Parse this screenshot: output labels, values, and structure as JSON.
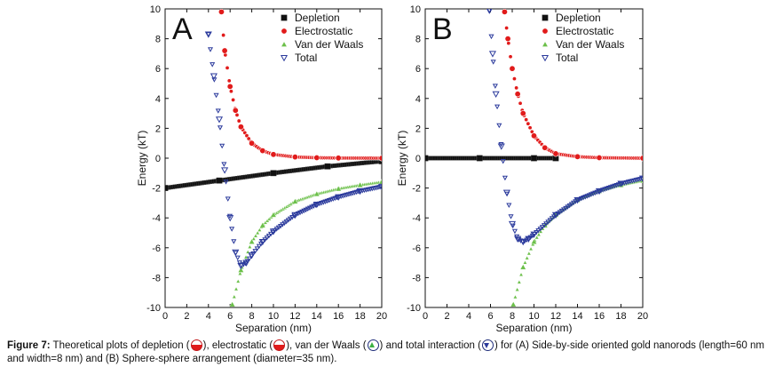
{
  "chart_data": [
    {
      "type": "scatter",
      "panel_label": "A",
      "xlabel": "Separation (nm)",
      "ylabel": "Energy (kT)",
      "xlim": [
        0,
        20
      ],
      "ylim": [
        -10,
        10
      ],
      "xticks": [
        "0",
        "2",
        "4",
        "6",
        "8",
        "10",
        "12",
        "14",
        "16",
        "18",
        "20"
      ],
      "yticks": [
        "-10",
        "-8",
        "-6",
        "-4",
        "-2",
        "0",
        "2",
        "4",
        "6",
        "8",
        "10"
      ],
      "legend": [
        "Depletion",
        "Electrostatic",
        "Van der Waals",
        "Total"
      ],
      "series": [
        {
          "name": "Depletion",
          "x": [
            0,
            5,
            10,
            15,
            20
          ],
          "y": [
            -2.0,
            -1.5,
            -1.0,
            -0.55,
            -0.2
          ]
        },
        {
          "name": "Electrostatic",
          "x": [
            5.2,
            5.5,
            6,
            6.5,
            7,
            8,
            9,
            10,
            12,
            14,
            16,
            20
          ],
          "y": [
            9.8,
            7.2,
            4.8,
            3.2,
            2.1,
            1.0,
            0.5,
            0.25,
            0.08,
            0.03,
            0.01,
            0.0
          ]
        },
        {
          "name": "Van der Waals",
          "x": [
            6.2,
            7,
            8,
            9,
            10,
            12,
            14,
            16,
            18,
            20
          ],
          "y": [
            -9.8,
            -7.5,
            -5.6,
            -4.5,
            -3.8,
            -2.9,
            -2.4,
            -2.05,
            -1.8,
            -1.6
          ]
        },
        {
          "name": "Total",
          "x": [
            4,
            4.5,
            5,
            5.5,
            6,
            6.5,
            7,
            7.5,
            8,
            9,
            10,
            12,
            14,
            16,
            18,
            20
          ],
          "y": [
            8.3,
            5.5,
            2.6,
            -0.8,
            -4.0,
            -6.3,
            -7.2,
            -7.0,
            -6.5,
            -5.6,
            -4.9,
            -3.8,
            -3.1,
            -2.6,
            -2.2,
            -1.9
          ]
        }
      ]
    },
    {
      "type": "scatter",
      "panel_label": "B",
      "xlabel": "Separation (nm)",
      "ylabel": "Energy (kT)",
      "xlim": [
        0,
        20
      ],
      "ylim": [
        -10,
        10
      ],
      "xticks": [
        "0",
        "2",
        "4",
        "6",
        "8",
        "10",
        "12",
        "14",
        "16",
        "18",
        "20"
      ],
      "yticks": [
        "-10",
        "-8",
        "-6",
        "-4",
        "-2",
        "0",
        "2",
        "4",
        "6",
        "8",
        "10"
      ],
      "legend": [
        "Depletion",
        "Electrostatic",
        "Van der Waals",
        "Total"
      ],
      "series": [
        {
          "name": "Depletion",
          "x": [
            0,
            5,
            10,
            12
          ],
          "y": [
            0,
            0,
            0,
            0
          ]
        },
        {
          "name": "Electrostatic",
          "x": [
            7.3,
            7.6,
            8,
            8.5,
            9,
            10,
            11,
            12,
            14,
            16,
            20
          ],
          "y": [
            9.8,
            8.0,
            6.0,
            4.3,
            3.0,
            1.5,
            0.7,
            0.3,
            0.1,
            0.03,
            0.0
          ]
        },
        {
          "name": "Van der Waals",
          "x": [
            8.1,
            9,
            10,
            11,
            12,
            14,
            16,
            18,
            20
          ],
          "y": [
            -9.8,
            -7.3,
            -5.6,
            -4.5,
            -3.8,
            -2.8,
            -2.2,
            -1.8,
            -1.5
          ]
        },
        {
          "name": "Total",
          "x": [
            5.9,
            6.2,
            6.5,
            7,
            7.5,
            8,
            8.5,
            9,
            9.5,
            10,
            12,
            14,
            16,
            18,
            20
          ],
          "y": [
            9.9,
            7.0,
            4.3,
            0.8,
            -2.3,
            -4.4,
            -5.4,
            -5.6,
            -5.4,
            -5.1,
            -3.8,
            -2.8,
            -2.2,
            -1.7,
            -1.35
          ]
        }
      ]
    }
  ],
  "caption": {
    "label": "Figure 7:",
    "part1": " Theoretical plots of depletion (",
    "part2": "), electrostatic (",
    "part3": "), van der Waals (",
    "part4": ") and total interaction (",
    "part5": ") for (A) Side-by-side oriented gold nanorods (length=60 nm and width=8 nm) and (B) Sphere-sphere arrangement (diameter=35 nm)."
  },
  "colors": {
    "depletion": "#111111",
    "electrostatic": "#e11b1b",
    "vdw": "#6cc04a",
    "total": "#2b3a9c"
  }
}
